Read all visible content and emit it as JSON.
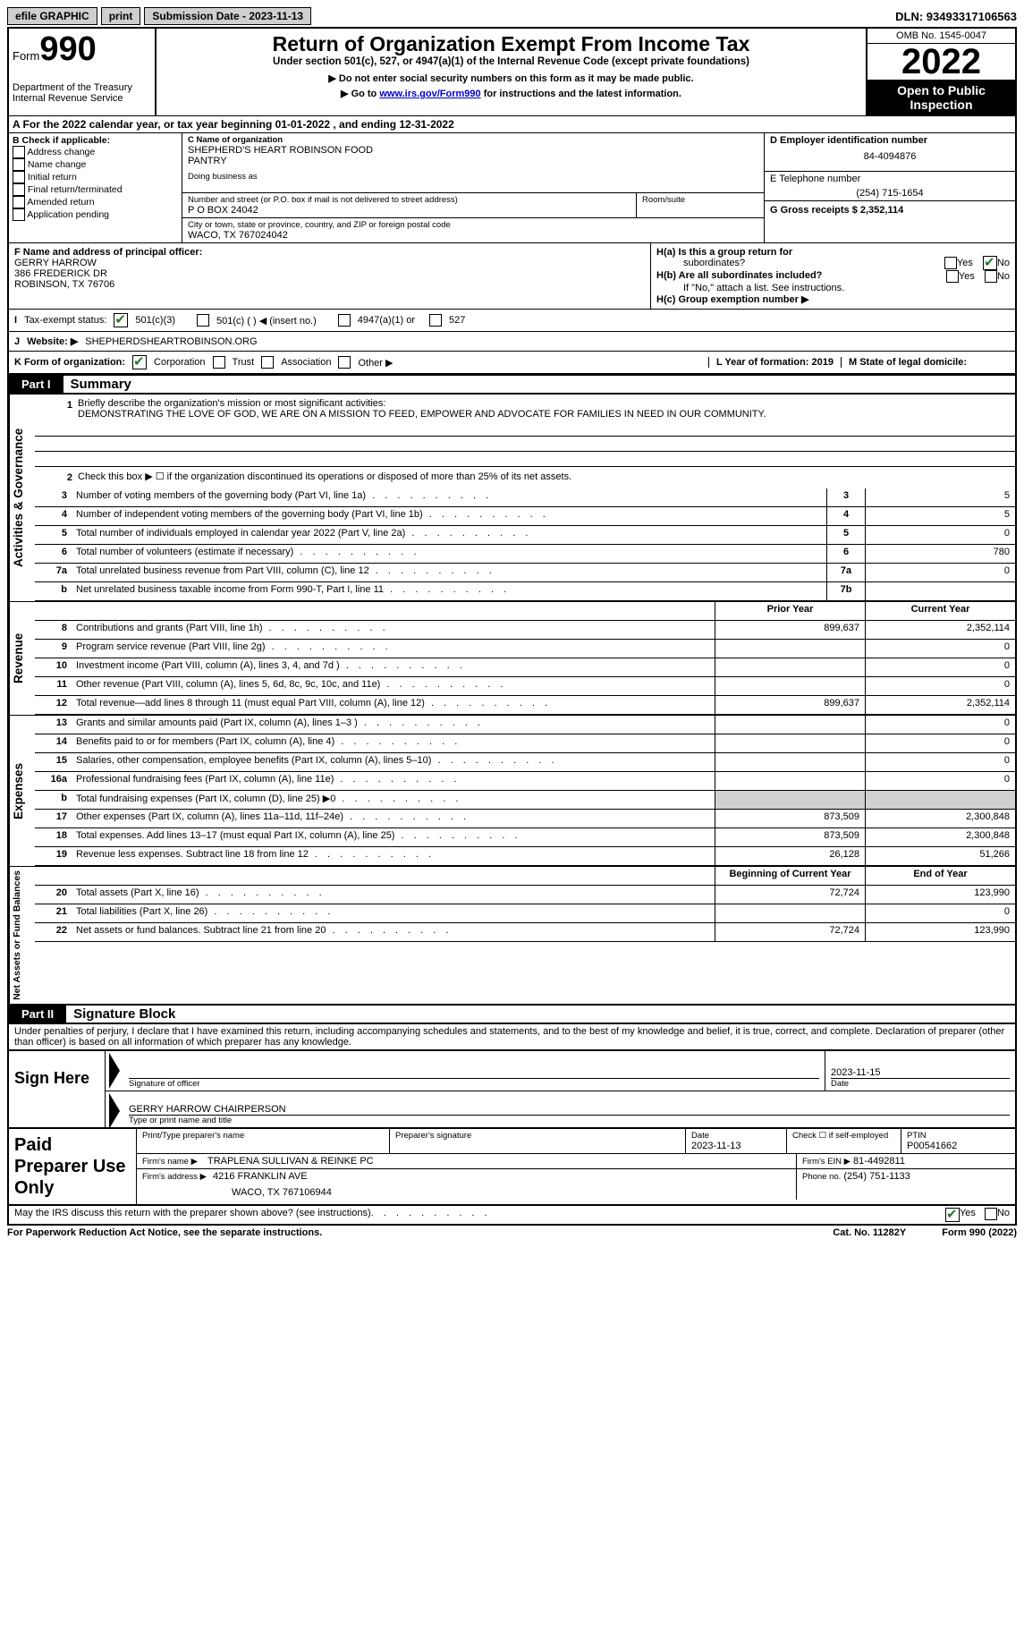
{
  "topbar": {
    "efile": "efile GRAPHIC",
    "print": "print",
    "submission_label": "Submission Date - 2023-11-13",
    "dln_label": "DLN: 93493317106563"
  },
  "header": {
    "form_word": "Form",
    "form_number": "990",
    "dept": "Department of the Treasury",
    "irs": "Internal Revenue Service",
    "title": "Return of Organization Exempt From Income Tax",
    "subtitle": "Under section 501(c), 527, or 4947(a)(1) of the Internal Revenue Code (except private foundations)",
    "warn1": "▶ Do not enter social security numbers on this form as it may be made public.",
    "warn2_pre": "▶ Go to ",
    "warn2_link": "www.irs.gov/Form990",
    "warn2_post": " for instructions and the latest information.",
    "omb": "OMB No. 1545-0047",
    "year": "2022",
    "open_public1": "Open to Public",
    "open_public2": "Inspection"
  },
  "period": {
    "line_a": "A For the 2022 calendar year, or tax year beginning 01-01-2022    , and ending 12-31-2022"
  },
  "section_b": {
    "b_label": "B Check if applicable:",
    "opts": [
      "Address change",
      "Name change",
      "Initial return",
      "Final return/terminated",
      "Amended return",
      "Application pending"
    ],
    "c_label": "C Name of organization",
    "org_name1": "SHEPHERD'S HEART ROBINSON FOOD",
    "org_name2": "PANTRY",
    "dba_label": "Doing business as",
    "addr_label": "Number and street (or P.O. box if mail is not delivered to street address)",
    "room_label": "Room/suite",
    "addr": "P O BOX 24042",
    "city_label": "City or town, state or province, country, and ZIP or foreign postal code",
    "city": "WACO, TX  767024042",
    "d_label": "D Employer identification number",
    "ein": "84-4094876",
    "e_label": "E Telephone number",
    "phone": "(254) 715-1654",
    "g_label": "G Gross receipts $ 2,352,114"
  },
  "section_f": {
    "f_label": "F  Name and address of principal officer:",
    "name": "GERRY HARROW",
    "addr1": "386 FREDERICK DR",
    "addr2": "ROBINSON, TX  76706",
    "ha_label": "H(a)  Is this a group return for",
    "ha_label2": "subordinates?",
    "hb_label": "H(b)  Are all subordinates included?",
    "hb_note": "If \"No,\" attach a list. See instructions.",
    "hc_label": "H(c)  Group exemption number ▶",
    "yes": "Yes",
    "no": "No"
  },
  "tax_status": {
    "i_label": "I",
    "label": "Tax-exempt status:",
    "opt1": "501(c)(3)",
    "opt2": "501(c) (   ) ◀ (insert no.)",
    "opt3": "4947(a)(1) or",
    "opt4": "527"
  },
  "website": {
    "j_label": "J",
    "label": "Website: ▶",
    "value": "SHEPHERDSHEARTROBINSON.ORG"
  },
  "k_org": {
    "k_label": "K Form of organization:",
    "opts": [
      "Corporation",
      "Trust",
      "Association",
      "Other ▶"
    ],
    "l_label": "L Year of formation: 2019",
    "m_label": "M State of legal domicile:"
  },
  "part1": {
    "part": "Part I",
    "title": "Summary",
    "q1_label": "Briefly describe the organization's mission or most significant activities:",
    "mission": "DEMONSTRATING THE LOVE OF GOD, WE ARE ON A MISSION TO FEED, EMPOWER AND ADVOCATE FOR FAMILIES IN NEED IN OUR COMMUNITY.",
    "q2": "Check this box ▶ ☐  if the organization discontinued its operations or disposed of more than 25% of its net assets.",
    "sections": {
      "activities": "Activities & Governance",
      "revenue": "Revenue",
      "expenses": "Expenses",
      "net": "Net Assets or Fund Balances"
    },
    "rows": [
      {
        "n": "3",
        "label": "Number of voting members of the governing body (Part VI, line 1a)",
        "box": "3",
        "val": "5"
      },
      {
        "n": "4",
        "label": "Number of independent voting members of the governing body (Part VI, line 1b)",
        "box": "4",
        "val": "5"
      },
      {
        "n": "5",
        "label": "Total number of individuals employed in calendar year 2022 (Part V, line 2a)",
        "box": "5",
        "val": "0"
      },
      {
        "n": "6",
        "label": "Total number of volunteers (estimate if necessary)",
        "box": "6",
        "val": "780"
      },
      {
        "n": "7a",
        "label": "Total unrelated business revenue from Part VIII, column (C), line 12",
        "box": "7a",
        "val": "0"
      },
      {
        "n": "b",
        "label": "Net unrelated business taxable income from Form 990-T, Part I, line 11",
        "box": "7b",
        "val": ""
      }
    ],
    "col_prior": "Prior Year",
    "col_current": "Current Year",
    "rev_rows": [
      {
        "n": "8",
        "label": "Contributions and grants (Part VIII, line 1h)",
        "prior": "899,637",
        "cur": "2,352,114"
      },
      {
        "n": "9",
        "label": "Program service revenue (Part VIII, line 2g)",
        "prior": "",
        "cur": "0"
      },
      {
        "n": "10",
        "label": "Investment income (Part VIII, column (A), lines 3, 4, and 7d )",
        "prior": "",
        "cur": "0"
      },
      {
        "n": "11",
        "label": "Other revenue (Part VIII, column (A), lines 5, 6d, 8c, 9c, 10c, and 11e)",
        "prior": "",
        "cur": "0"
      },
      {
        "n": "12",
        "label": "Total revenue—add lines 8 through 11 (must equal Part VIII, column (A), line 12)",
        "prior": "899,637",
        "cur": "2,352,114"
      }
    ],
    "exp_rows": [
      {
        "n": "13",
        "label": "Grants and similar amounts paid (Part IX, column (A), lines 1–3 )",
        "prior": "",
        "cur": "0"
      },
      {
        "n": "14",
        "label": "Benefits paid to or for members (Part IX, column (A), line 4)",
        "prior": "",
        "cur": "0"
      },
      {
        "n": "15",
        "label": "Salaries, other compensation, employee benefits (Part IX, column (A), lines 5–10)",
        "prior": "",
        "cur": "0"
      },
      {
        "n": "16a",
        "label": "Professional fundraising fees (Part IX, column (A), line 11e)",
        "prior": "",
        "cur": "0"
      },
      {
        "n": "b",
        "label": "Total fundraising expenses (Part IX, column (D), line 25) ▶0",
        "prior": "GRAY",
        "cur": "GRAY"
      },
      {
        "n": "17",
        "label": "Other expenses (Part IX, column (A), lines 11a–11d, 11f–24e)",
        "prior": "873,509",
        "cur": "2,300,848"
      },
      {
        "n": "18",
        "label": "Total expenses. Add lines 13–17 (must equal Part IX, column (A), line 25)",
        "prior": "873,509",
        "cur": "2,300,848"
      },
      {
        "n": "19",
        "label": "Revenue less expenses. Subtract line 18 from line 12",
        "prior": "26,128",
        "cur": "51,266"
      }
    ],
    "col_begin": "Beginning of Current Year",
    "col_end": "End of Year",
    "net_rows": [
      {
        "n": "20",
        "label": "Total assets (Part X, line 16)",
        "prior": "72,724",
        "cur": "123,990"
      },
      {
        "n": "21",
        "label": "Total liabilities (Part X, line 26)",
        "prior": "",
        "cur": "0"
      },
      {
        "n": "22",
        "label": "Net assets or fund balances. Subtract line 21 from line 20",
        "prior": "72,724",
        "cur": "123,990"
      }
    ]
  },
  "part2": {
    "part": "Part II",
    "title": "Signature Block",
    "penalties": "Under penalties of perjury, I declare that I have examined this return, including accompanying schedules and statements, and to the best of my knowledge and belief, it is true, correct, and complete. Declaration of preparer (other than officer) is based on all information of which preparer has any knowledge.",
    "sign_here": "Sign Here",
    "sig_officer": "Signature of officer",
    "date_label": "Date",
    "sig_date": "2023-11-15",
    "typed_name": "GERRY HARROW  CHAIRPERSON",
    "typed_label": "Type or print name and title",
    "paid_prep": "Paid Preparer Use Only",
    "print_name_label": "Print/Type preparer's name",
    "prep_sig_label": "Preparer's signature",
    "prep_date_label": "Date",
    "prep_date": "2023-11-13",
    "check_self": "Check ☐ if self-employed",
    "ptin_label": "PTIN",
    "ptin": "P00541662",
    "firm_name_label": "Firm's name     ▶",
    "firm_name": "TRAPLENA SULLIVAN & REINKE PC",
    "firm_ein_label": "Firm's EIN ▶",
    "firm_ein": "81-4492811",
    "firm_addr_label": "Firm's address ▶",
    "firm_addr1": "4216 FRANKLIN AVE",
    "firm_addr2": "WACO, TX  767106944",
    "firm_phone_label": "Phone no.",
    "firm_phone": "(254) 751-1133",
    "discuss": "May the IRS discuss this return with the preparer shown above? (see instructions)",
    "yes": "Yes",
    "no": "No"
  },
  "footer": {
    "paperwork": "For Paperwork Reduction Act Notice, see the separate instructions.",
    "cat": "Cat. No. 11282Y",
    "form": "Form 990 (2022)"
  }
}
